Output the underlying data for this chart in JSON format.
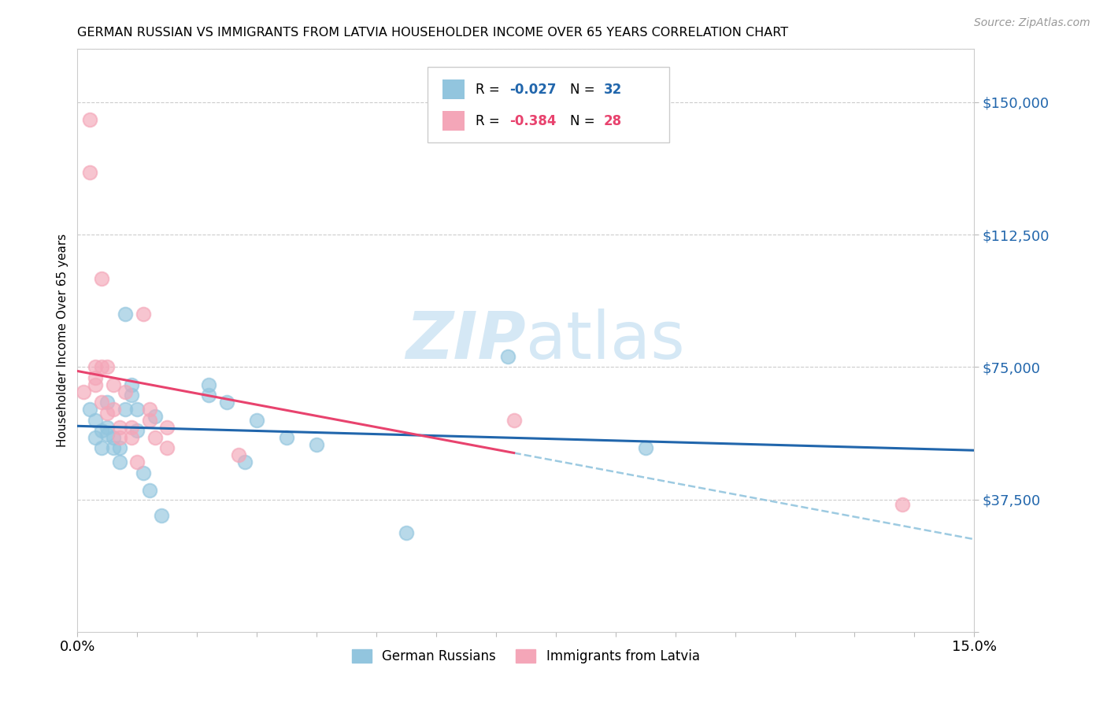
{
  "title": "GERMAN RUSSIAN VS IMMIGRANTS FROM LATVIA HOUSEHOLDER INCOME OVER 65 YEARS CORRELATION CHART",
  "source": "Source: ZipAtlas.com",
  "ylabel": "Householder Income Over 65 years",
  "xlim": [
    0.0,
    0.15
  ],
  "ylim": [
    0,
    165000
  ],
  "yticks": [
    0,
    37500,
    75000,
    112500,
    150000
  ],
  "ytick_labels": [
    "",
    "$37,500",
    "$75,000",
    "$112,500",
    "$150,000"
  ],
  "blue_color": "#92c5de",
  "pink_color": "#f4a6b8",
  "blue_line_color": "#2166ac",
  "pink_line_color": "#e8436e",
  "dash_line_color": "#92c5de",
  "watermark_color": "#d5e8f5",
  "blue_scatter_x": [
    0.002,
    0.003,
    0.003,
    0.004,
    0.004,
    0.005,
    0.005,
    0.005,
    0.006,
    0.006,
    0.007,
    0.007,
    0.008,
    0.008,
    0.009,
    0.009,
    0.01,
    0.01,
    0.011,
    0.012,
    0.013,
    0.014,
    0.022,
    0.022,
    0.025,
    0.028,
    0.03,
    0.035,
    0.04,
    0.055,
    0.072,
    0.095
  ],
  "blue_scatter_y": [
    63000,
    60000,
    55000,
    57000,
    52000,
    58000,
    65000,
    56000,
    55000,
    52000,
    52000,
    48000,
    90000,
    63000,
    67000,
    70000,
    63000,
    57000,
    45000,
    40000,
    61000,
    33000,
    70000,
    67000,
    65000,
    48000,
    60000,
    55000,
    53000,
    28000,
    78000,
    52000
  ],
  "pink_scatter_x": [
    0.001,
    0.002,
    0.002,
    0.003,
    0.003,
    0.003,
    0.004,
    0.004,
    0.004,
    0.005,
    0.005,
    0.006,
    0.006,
    0.007,
    0.007,
    0.008,
    0.009,
    0.009,
    0.01,
    0.011,
    0.012,
    0.012,
    0.013,
    0.015,
    0.015,
    0.027,
    0.073,
    0.138
  ],
  "pink_scatter_y": [
    68000,
    130000,
    145000,
    75000,
    70000,
    72000,
    100000,
    75000,
    65000,
    75000,
    62000,
    70000,
    63000,
    58000,
    55000,
    68000,
    58000,
    55000,
    48000,
    90000,
    63000,
    60000,
    55000,
    58000,
    52000,
    50000,
    60000,
    36000
  ],
  "legend_r1": "-0.027",
  "legend_n1": "32",
  "legend_r2": "-0.384",
  "legend_n2": "28"
}
